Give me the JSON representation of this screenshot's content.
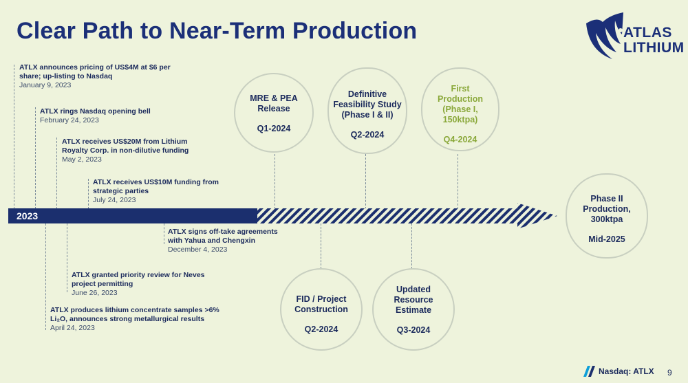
{
  "title": "Clear Path to Near-Term Production",
  "logo": {
    "line1": "ATLAS",
    "line2": "LITHIUM"
  },
  "timeline_year": "2023",
  "events_above": [
    {
      "text": "ATLX announces pricing of US$4M at $6 per share; up-listing to Nasdaq",
      "date": "January 9, 2023"
    },
    {
      "text": "ATLX rings Nasdaq opening bell",
      "date": "February 24, 2023"
    },
    {
      "text": "ATLX receives US$20M from Lithium Royalty Corp. in non-dilutive funding",
      "date": "May 2, 2023"
    },
    {
      "text": "ATLX receives US$10M funding from strategic parties",
      "date": "July 24, 2023"
    }
  ],
  "events_below": [
    {
      "text": "ATLX signs off-take agreements with Yahua and Chengxin",
      "date": "December 4, 2023"
    },
    {
      "text": "ATLX granted priority review for Neves project permitting",
      "date": "June 26, 2023"
    },
    {
      "text": "ATLX produces lithium concentrate samples >6% Li₂O, announces strong metallurgical results",
      "date": "April 24, 2023"
    }
  ],
  "milestones": [
    {
      "label": "MRE & PEA Release",
      "when": "Q1-2024"
    },
    {
      "label": "Definitive Feasibility Study (Phase I & II)",
      "when": "Q2-2024"
    },
    {
      "label": "First Production (Phase I, 150ktpa)",
      "when": "Q4-2024"
    },
    {
      "label": "FID / Project Construction",
      "when": "Q2-2024"
    },
    {
      "label": "Updated Resource Estimate",
      "when": "Q3-2024"
    },
    {
      "label": "Phase II Production, 300ktpa",
      "when": "Mid-2025"
    }
  ],
  "footer": {
    "exchange": "Nasdaq",
    "ticker": "ATLX",
    "page": "9"
  },
  "colors": {
    "navy": "#1b2f6e",
    "background": "#eef3dc",
    "green": "#8aa83a"
  }
}
